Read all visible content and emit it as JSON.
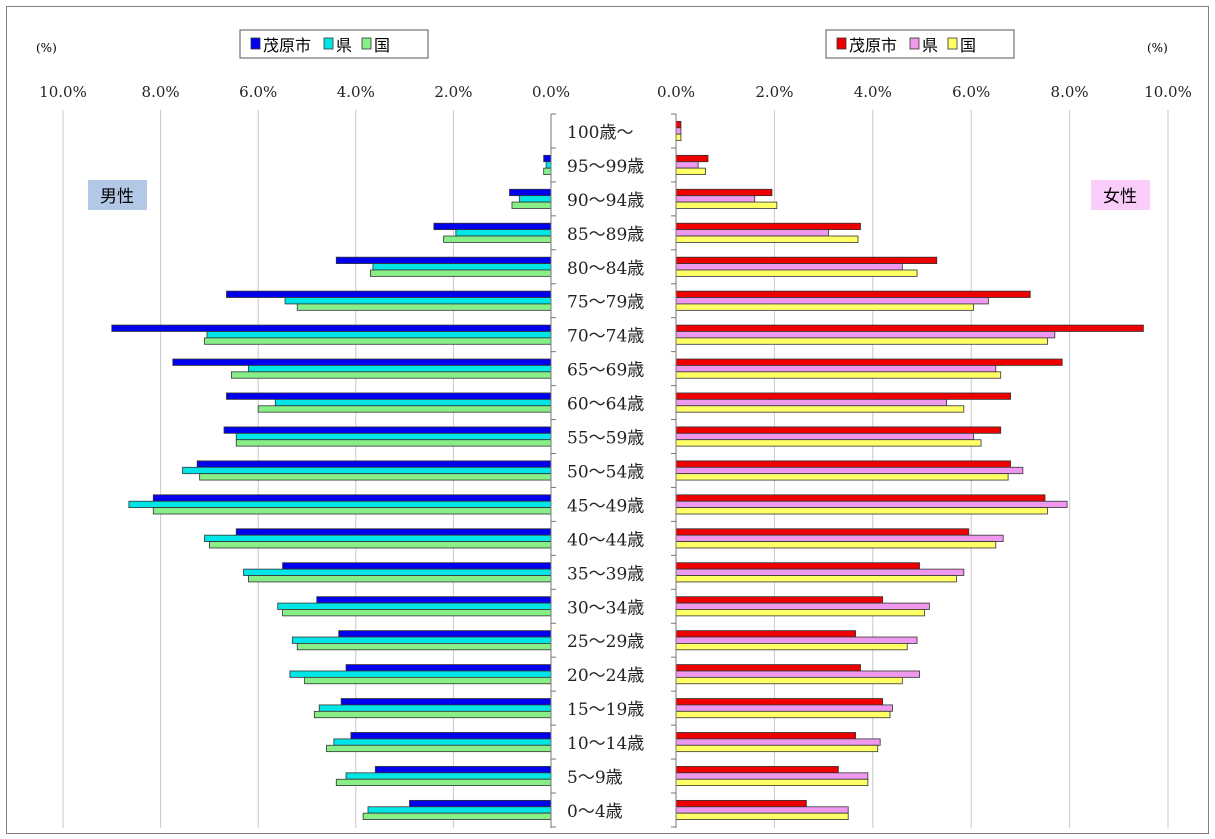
{
  "chart_data": [
    {
      "type": "bar",
      "panel": "left",
      "orientation": "horizontal",
      "direction": "reversed",
      "tag": "男性",
      "unit_label": "(%)",
      "xlim": [
        0,
        10
      ],
      "x_ticks": [
        "0.0%",
        "2.0%",
        "4.0%",
        "6.0%",
        "8.0%",
        "10.0%"
      ],
      "categories": [
        "100歳～",
        "95～99歳",
        "90～94歳",
        "85～89歳",
        "80～84歳",
        "75～79歳",
        "70～74歳",
        "65～69歳",
        "60～64歳",
        "55～59歳",
        "50～54歳",
        "45～49歳",
        "40～44歳",
        "35～39歳",
        "30～34歳",
        "25～29歳",
        "20～24歳",
        "15～19歳",
        "10～14歳",
        "5～9歳",
        "0～4歳"
      ],
      "series": [
        {
          "name": "茂原市",
          "color": "#0000ee",
          "values": [
            0.0,
            0.15,
            0.85,
            2.4,
            4.4,
            6.65,
            9.0,
            7.75,
            6.65,
            6.7,
            7.25,
            8.15,
            6.45,
            5.5,
            4.8,
            4.35,
            4.2,
            4.3,
            4.1,
            3.6,
            2.9
          ]
        },
        {
          "name": "県",
          "color": "#00e5e5",
          "values": [
            0.0,
            0.1,
            0.65,
            1.95,
            3.65,
            5.45,
            7.05,
            6.2,
            5.65,
            6.45,
            7.55,
            8.65,
            7.1,
            6.3,
            5.6,
            5.3,
            5.35,
            4.75,
            4.45,
            4.2,
            3.75
          ]
        },
        {
          "name": "国",
          "color": "#88ee88",
          "values": [
            0.0,
            0.15,
            0.8,
            2.2,
            3.7,
            5.2,
            7.1,
            6.55,
            6.0,
            6.45,
            7.2,
            8.15,
            7.0,
            6.2,
            5.5,
            5.2,
            5.05,
            4.85,
            4.6,
            4.4,
            3.85
          ]
        }
      ]
    },
    {
      "type": "bar",
      "panel": "right",
      "orientation": "horizontal",
      "tag": "女性",
      "unit_label": "(%)",
      "xlim": [
        0,
        10
      ],
      "x_ticks": [
        "0.0%",
        "2.0%",
        "4.0%",
        "6.0%",
        "8.0%",
        "10.0%"
      ],
      "categories": [
        "100歳～",
        "95～99歳",
        "90～94歳",
        "85～89歳",
        "80～84歳",
        "75～79歳",
        "70～74歳",
        "65～69歳",
        "60～64歳",
        "55～59歳",
        "50～54歳",
        "45～49歳",
        "40～44歳",
        "35～39歳",
        "30～34歳",
        "25～29歳",
        "20～24歳",
        "15～19歳",
        "10～14歳",
        "5～9歳",
        "0～4歳"
      ],
      "series": [
        {
          "name": "茂原市",
          "color": "#ee0000",
          "values": [
            0.1,
            0.65,
            1.95,
            3.75,
            5.3,
            7.2,
            9.5,
            7.85,
            6.8,
            6.6,
            6.8,
            7.5,
            5.95,
            4.95,
            4.2,
            3.65,
            3.75,
            4.2,
            3.65,
            3.3,
            2.65
          ]
        },
        {
          "name": "県",
          "color": "#ee99ee",
          "values": [
            0.1,
            0.45,
            1.6,
            3.1,
            4.6,
            6.35,
            7.7,
            6.5,
            5.5,
            6.05,
            7.05,
            7.95,
            6.65,
            5.85,
            5.15,
            4.9,
            4.95,
            4.4,
            4.15,
            3.9,
            3.5
          ]
        },
        {
          "name": "国",
          "color": "#ffff66",
          "values": [
            0.1,
            0.6,
            2.05,
            3.7,
            4.9,
            6.05,
            7.55,
            6.6,
            5.85,
            6.2,
            6.75,
            7.55,
            6.5,
            5.7,
            5.05,
            4.7,
            4.6,
            4.35,
            4.1,
            3.9,
            3.5
          ]
        }
      ]
    }
  ]
}
